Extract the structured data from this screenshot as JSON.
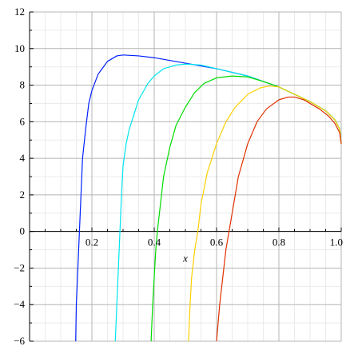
{
  "chart_data": {
    "type": "line",
    "title": "",
    "xlabel": "x",
    "ylabel": "",
    "xlim": [
      0,
      1
    ],
    "ylim": [
      -6,
      12
    ],
    "grid": true,
    "legend": "none",
    "x_ticks": [
      0.2,
      0.4,
      0.6,
      0.8,
      1.0
    ],
    "x_tick_labels": [
      "0.2",
      "0.4",
      "0.6",
      "0.8",
      "1.0"
    ],
    "y_ticks": [
      -6,
      -4,
      -2,
      0,
      2,
      4,
      6,
      8,
      10,
      12
    ],
    "y_tick_labels": [
      "−6",
      "−4",
      "−2",
      "0",
      "2",
      "4",
      "6",
      "8",
      "10",
      "12"
    ],
    "series": [
      {
        "color": "#0020ff",
        "points": [
          [
            0.148,
            -6
          ],
          [
            0.15,
            -4
          ],
          [
            0.155,
            -2
          ],
          [
            0.16,
            0
          ],
          [
            0.165,
            2
          ],
          [
            0.17,
            4
          ],
          [
            0.18,
            5.6
          ],
          [
            0.19,
            7
          ],
          [
            0.2,
            7.7
          ],
          [
            0.22,
            8.6
          ],
          [
            0.25,
            9.3
          ],
          [
            0.28,
            9.6
          ],
          [
            0.3,
            9.65
          ],
          [
            0.35,
            9.6
          ],
          [
            0.4,
            9.5
          ],
          [
            0.5,
            9.2
          ],
          [
            0.6,
            8.9
          ],
          [
            0.7,
            8.5
          ],
          [
            0.8,
            7.9
          ],
          [
            0.85,
            7.5
          ],
          [
            0.9,
            7.1
          ],
          [
            0.95,
            6.6
          ],
          [
            0.98,
            6.1
          ],
          [
            0.995,
            5.6
          ],
          [
            1.0,
            4.8
          ]
        ]
      },
      {
        "color": "#00e5ee",
        "points": [
          [
            0.275,
            -6
          ],
          [
            0.28,
            -4
          ],
          [
            0.285,
            -2
          ],
          [
            0.29,
            0
          ],
          [
            0.295,
            2
          ],
          [
            0.3,
            3.6
          ],
          [
            0.31,
            4.8
          ],
          [
            0.32,
            5.6
          ],
          [
            0.35,
            7.2
          ],
          [
            0.38,
            8.1
          ],
          [
            0.4,
            8.5
          ],
          [
            0.43,
            8.9
          ],
          [
            0.47,
            9.1
          ],
          [
            0.5,
            9.15
          ],
          [
            0.55,
            9.1
          ],
          [
            0.6,
            8.9
          ],
          [
            0.7,
            8.5
          ],
          [
            0.8,
            7.9
          ],
          [
            0.85,
            7.5
          ],
          [
            0.9,
            7.1
          ],
          [
            0.95,
            6.6
          ],
          [
            0.98,
            6.1
          ],
          [
            0.995,
            5.6
          ],
          [
            1.0,
            4.8
          ]
        ]
      },
      {
        "color": "#00dd00",
        "points": [
          [
            0.39,
            -6
          ],
          [
            0.395,
            -4
          ],
          [
            0.4,
            -2.5
          ],
          [
            0.405,
            -1
          ],
          [
            0.41,
            0
          ],
          [
            0.42,
            1.5
          ],
          [
            0.43,
            3
          ],
          [
            0.45,
            4.6
          ],
          [
            0.47,
            5.8
          ],
          [
            0.5,
            6.8
          ],
          [
            0.53,
            7.6
          ],
          [
            0.56,
            8.1
          ],
          [
            0.6,
            8.4
          ],
          [
            0.65,
            8.5
          ],
          [
            0.7,
            8.45
          ],
          [
            0.75,
            8.2
          ],
          [
            0.8,
            7.9
          ],
          [
            0.85,
            7.5
          ],
          [
            0.9,
            7.1
          ],
          [
            0.95,
            6.6
          ],
          [
            0.98,
            6.1
          ],
          [
            0.995,
            5.6
          ],
          [
            1.0,
            4.8
          ]
        ]
      },
      {
        "color": "#ffd000",
        "points": [
          [
            0.51,
            -6
          ],
          [
            0.515,
            -4
          ],
          [
            0.52,
            -2.5
          ],
          [
            0.53,
            -1
          ],
          [
            0.54,
            0
          ],
          [
            0.55,
            1.5
          ],
          [
            0.57,
            3.2
          ],
          [
            0.6,
            4.8
          ],
          [
            0.63,
            6
          ],
          [
            0.66,
            6.8
          ],
          [
            0.7,
            7.5
          ],
          [
            0.74,
            7.85
          ],
          [
            0.77,
            7.95
          ],
          [
            0.8,
            7.9
          ],
          [
            0.85,
            7.5
          ],
          [
            0.9,
            7.1
          ],
          [
            0.95,
            6.6
          ],
          [
            0.98,
            6.1
          ],
          [
            0.995,
            5.6
          ],
          [
            1.0,
            4.8
          ]
        ]
      },
      {
        "color": "#e03000",
        "points": [
          [
            0.6,
            -6
          ],
          [
            0.61,
            -4
          ],
          [
            0.62,
            -2.5
          ],
          [
            0.63,
            -1
          ],
          [
            0.64,
            0
          ],
          [
            0.655,
            1.5
          ],
          [
            0.67,
            3
          ],
          [
            0.7,
            4.8
          ],
          [
            0.73,
            6
          ],
          [
            0.76,
            6.7
          ],
          [
            0.8,
            7.2
          ],
          [
            0.83,
            7.35
          ],
          [
            0.85,
            7.35
          ],
          [
            0.88,
            7.2
          ],
          [
            0.9,
            7.0
          ],
          [
            0.93,
            6.7
          ],
          [
            0.96,
            6.3
          ],
          [
            0.98,
            5.9
          ],
          [
            0.995,
            5.4
          ],
          [
            1.0,
            4.8
          ]
        ]
      }
    ]
  }
}
